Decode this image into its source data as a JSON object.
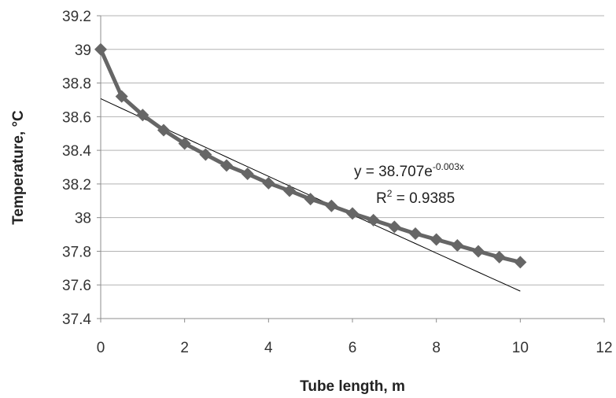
{
  "chart_data": {
    "type": "line",
    "xlabel": "Tube length, m",
    "ylabel": "Temperature, °C",
    "xlim": [
      0,
      12
    ],
    "ylim": [
      37.4,
      39.2
    ],
    "x_ticks": [
      "0",
      "2",
      "4",
      "6",
      "8",
      "10",
      "12"
    ],
    "y_ticks": [
      "37.4",
      "37.6",
      "37.8",
      "38",
      "38.2",
      "38.4",
      "38.6",
      "38.8",
      "39",
      "39.2"
    ],
    "grid": "horizontal",
    "colors": {
      "series": "#666666",
      "trendline": "#000000",
      "grid": "#b3b3b3",
      "axis": "#8c8c8c"
    },
    "series": [
      {
        "marker": "diamond",
        "x": [
          0,
          0.5,
          1,
          1.5,
          2,
          2.5,
          3,
          3.5,
          4,
          4.5,
          5,
          5.5,
          6,
          6.5,
          7,
          7.5,
          8,
          8.5,
          9,
          9.5,
          10
        ],
        "y": [
          39.0,
          38.72,
          38.61,
          38.52,
          38.44,
          38.375,
          38.31,
          38.26,
          38.205,
          38.16,
          38.11,
          38.07,
          38.025,
          37.985,
          37.945,
          37.905,
          37.87,
          37.835,
          37.8,
          37.765,
          37.735
        ]
      }
    ],
    "trendline": {
      "type": "exponential",
      "a": 38.707,
      "b": -0.003,
      "x_range": [
        0,
        10
      ]
    },
    "annotations": {
      "equation_base": "y = 38.707e",
      "equation_exp": "-0.003x",
      "r2_prefix": "R",
      "r2_sup": "2",
      "r2_value": " = 0.9385"
    }
  }
}
